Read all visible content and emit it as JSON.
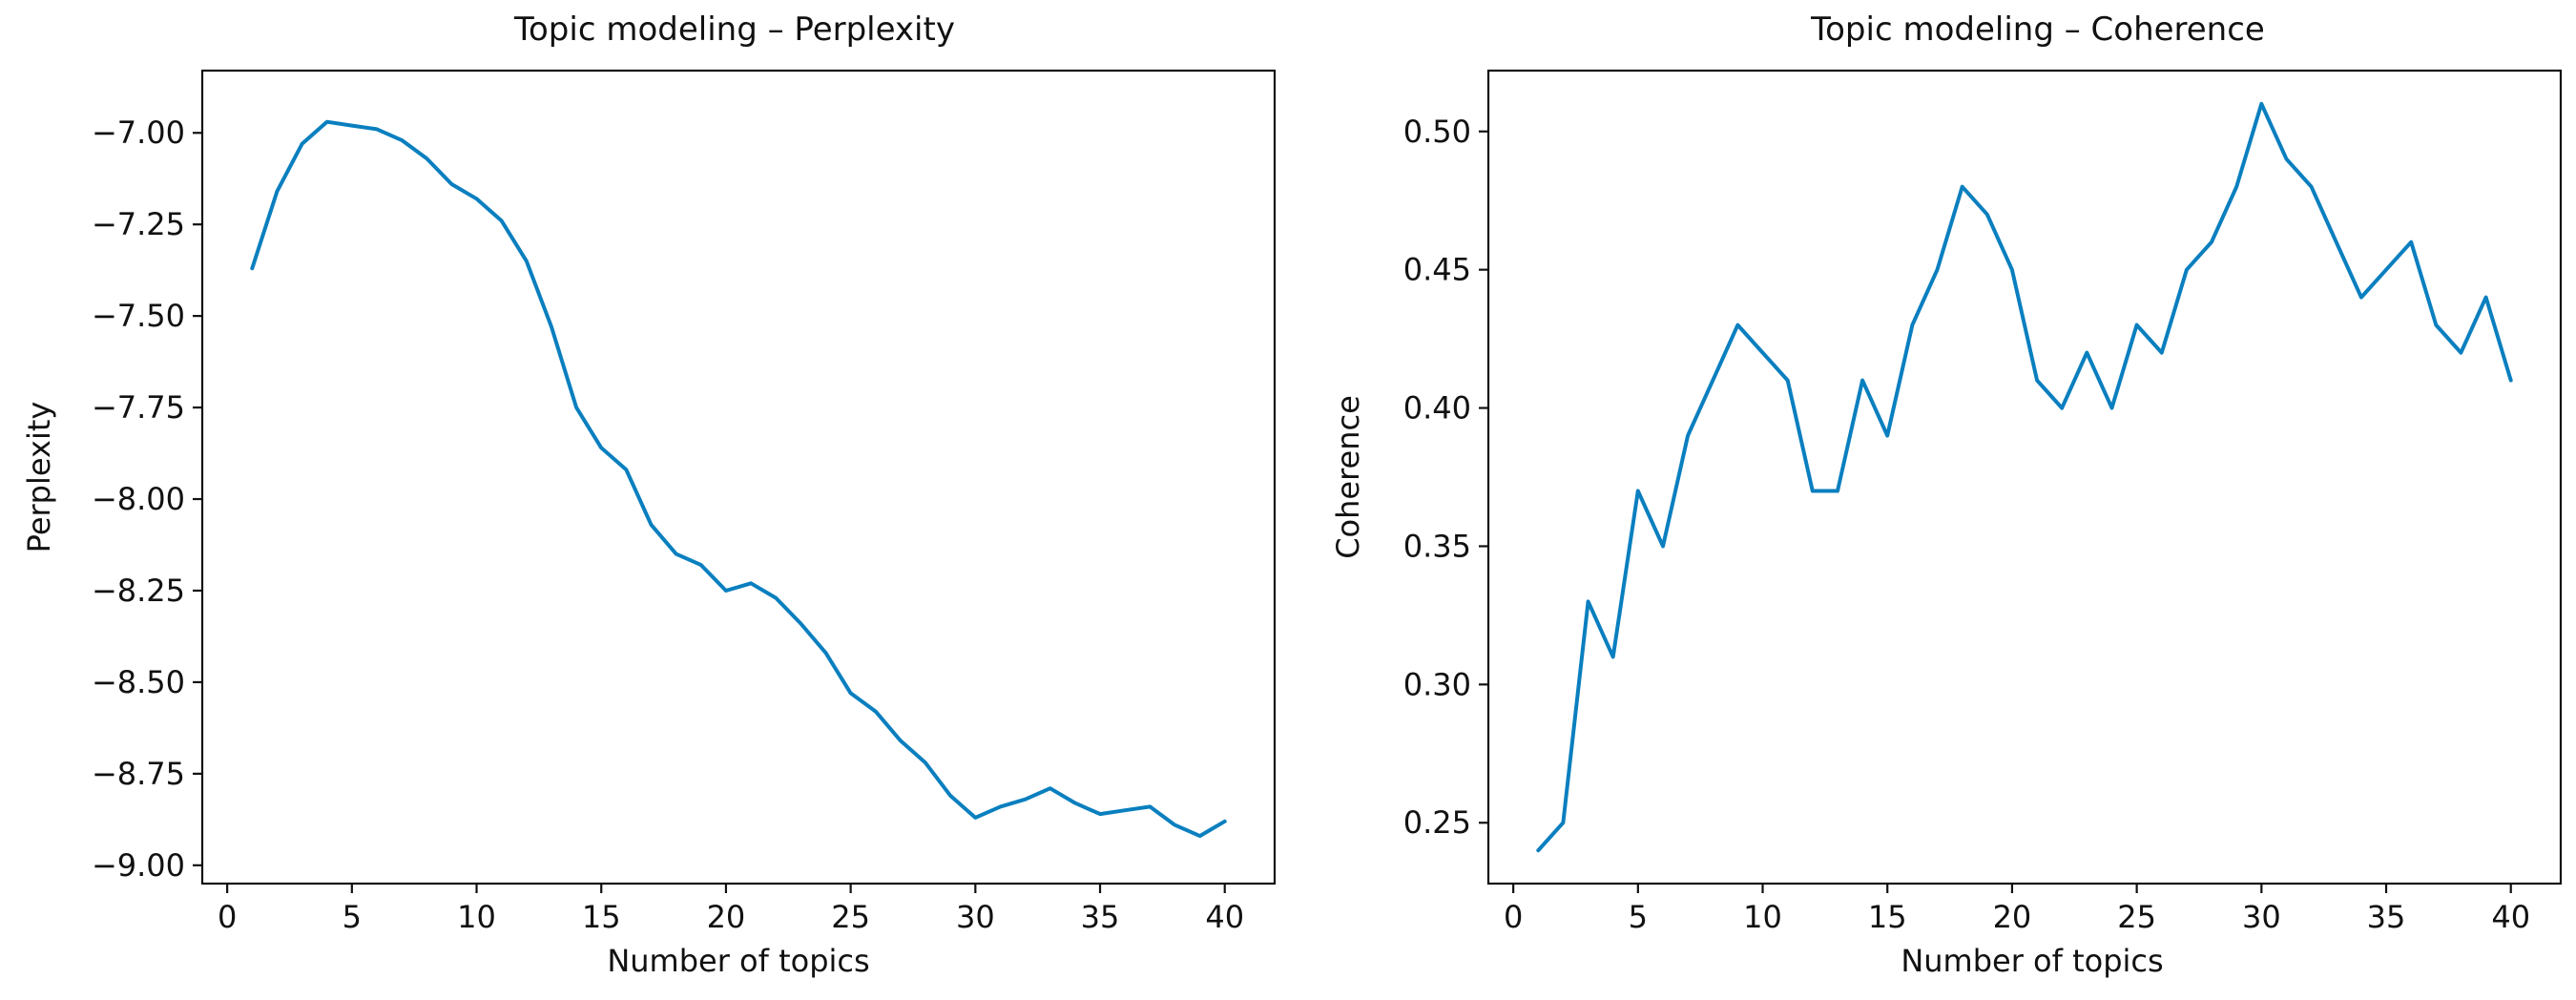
{
  "colors": {
    "line": "#0a7fbf",
    "axis": "#111111",
    "background": "#ffffff"
  },
  "chart_data": [
    {
      "type": "line",
      "title": "Topic modeling – Perplexity",
      "xlabel": "Number of topics",
      "ylabel": "Perplexity",
      "xlim": [
        -1,
        42
      ],
      "ylim": [
        -9.05,
        -6.83
      ],
      "xticks": [
        0,
        5,
        10,
        15,
        20,
        25,
        30,
        35,
        40
      ],
      "xtick_labels": [
        "0",
        "5",
        "10",
        "15",
        "20",
        "25",
        "30",
        "35",
        "40"
      ],
      "yticks": [
        -7.0,
        -7.25,
        -7.5,
        -7.75,
        -8.0,
        -8.25,
        -8.5,
        -8.75,
        -9.0
      ],
      "ytick_labels": [
        "−7.00",
        "−7.25",
        "−7.50",
        "−7.75",
        "−8.00",
        "−8.25",
        "−8.50",
        "−8.75",
        "−9.00"
      ],
      "series": [
        {
          "name": "Perplexity",
          "x": [
            1,
            2,
            3,
            4,
            5,
            6,
            7,
            8,
            9,
            10,
            11,
            12,
            13,
            14,
            15,
            16,
            17,
            18,
            19,
            20,
            21,
            22,
            23,
            24,
            25,
            26,
            27,
            28,
            29,
            30,
            31,
            32,
            33,
            34,
            35,
            36,
            37,
            38,
            39,
            40
          ],
          "values": [
            -7.37,
            -7.16,
            -7.03,
            -6.97,
            -6.98,
            -6.99,
            -7.02,
            -7.07,
            -7.14,
            -7.18,
            -7.24,
            -7.35,
            -7.53,
            -7.75,
            -7.86,
            -7.92,
            -8.07,
            -8.15,
            -8.18,
            -8.25,
            -8.23,
            -8.27,
            -8.34,
            -8.42,
            -8.53,
            -8.58,
            -8.66,
            -8.72,
            -8.81,
            -8.87,
            -8.84,
            -8.82,
            -8.79,
            -8.83,
            -8.86,
            -8.85,
            -8.84,
            -8.89,
            -8.92,
            -8.88
          ]
        }
      ]
    },
    {
      "type": "line",
      "title": "Topic modeling – Coherence",
      "xlabel": "Number of topics",
      "ylabel": "Coherence",
      "xlim": [
        -1,
        42
      ],
      "ylim": [
        0.228,
        0.522
      ],
      "xticks": [
        0,
        5,
        10,
        15,
        20,
        25,
        30,
        35,
        40
      ],
      "xtick_labels": [
        "0",
        "5",
        "10",
        "15",
        "20",
        "25",
        "30",
        "35",
        "40"
      ],
      "yticks": [
        0.25,
        0.3,
        0.35,
        0.4,
        0.45,
        0.5
      ],
      "ytick_labels": [
        "0.25",
        "0.30",
        "0.35",
        "0.40",
        "0.45",
        "0.50"
      ],
      "series": [
        {
          "name": "Coherence",
          "x": [
            1,
            2,
            3,
            4,
            5,
            6,
            7,
            8,
            9,
            10,
            11,
            12,
            13,
            14,
            15,
            16,
            17,
            18,
            19,
            20,
            21,
            22,
            23,
            24,
            25,
            26,
            27,
            28,
            29,
            30,
            31,
            32,
            33,
            34,
            35,
            36,
            37,
            38,
            39,
            40
          ],
          "values": [
            0.24,
            0.25,
            0.33,
            0.31,
            0.37,
            0.35,
            0.39,
            0.41,
            0.43,
            0.42,
            0.41,
            0.37,
            0.37,
            0.41,
            0.39,
            0.43,
            0.45,
            0.48,
            0.47,
            0.45,
            0.41,
            0.4,
            0.42,
            0.4,
            0.43,
            0.42,
            0.45,
            0.46,
            0.48,
            0.51,
            0.49,
            0.48,
            0.46,
            0.44,
            0.45,
            0.46,
            0.43,
            0.42,
            0.44,
            0.41
          ]
        }
      ]
    }
  ]
}
